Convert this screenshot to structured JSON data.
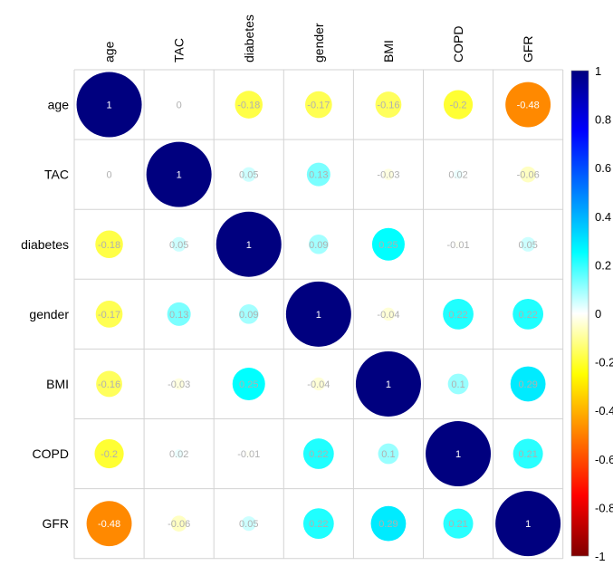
{
  "chart_data": {
    "type": "heatmap",
    "title": "",
    "variables": [
      "age",
      "TAC",
      "diabetes",
      "gender",
      "BMI",
      "COPD",
      "GFR"
    ],
    "matrix": [
      [
        1,
        0,
        -0.18,
        -0.17,
        -0.16,
        -0.2,
        -0.48
      ],
      [
        0,
        1,
        0.05,
        0.13,
        -0.03,
        0.02,
        -0.06
      ],
      [
        -0.18,
        0.05,
        1,
        0.09,
        0.25,
        -0.01,
        0.05
      ],
      [
        -0.17,
        0.13,
        0.09,
        1,
        -0.04,
        0.22,
        0.22
      ],
      [
        -0.16,
        -0.03,
        0.25,
        -0.04,
        1,
        0.1,
        0.29
      ],
      [
        -0.2,
        0.02,
        -0.01,
        0.22,
        0.1,
        1,
        0.21
      ],
      [
        -0.48,
        -0.06,
        0.05,
        0.22,
        0.29,
        0.21,
        1
      ]
    ],
    "value_labels": [
      [
        "1",
        "0",
        "-0.18",
        "-0.17",
        "-0.16",
        "-0.2",
        "-0.48"
      ],
      [
        "0",
        "1",
        "0.05",
        "0.13",
        "-0.03",
        "0.02",
        "-0.06"
      ],
      [
        "-0.18",
        "0.05",
        "1",
        "0.09",
        "0.25",
        "-0.01",
        "0.05"
      ],
      [
        "-0.17",
        "0.13",
        "0.09",
        "1",
        "-0.04",
        "0.22",
        "0.22"
      ],
      [
        "-0.16",
        "-0.03",
        "0.25",
        "-0.04",
        "1",
        "0.1",
        "0.29"
      ],
      [
        "-0.2",
        "0.02",
        "-0.01",
        "0.22",
        "0.1",
        "1",
        "0.21"
      ],
      [
        "-0.48",
        "-0.06",
        "0.05",
        "0.22",
        "0.29",
        "0.21",
        "1"
      ]
    ],
    "colorbar": {
      "range": [
        -1,
        1
      ],
      "ticks": [
        "1",
        "0.8",
        "0.6",
        "0.4",
        "0.2",
        "0",
        "-0.2",
        "-0.4",
        "-0.6",
        "-0.8",
        "-1"
      ],
      "tick_values": [
        1,
        0.8,
        0.6,
        0.4,
        0.2,
        0,
        -0.2,
        -0.4,
        -0.6,
        -0.8,
        -1
      ],
      "colors": [
        "#7f0000",
        "#ff0000",
        "#ff7f00",
        "#ffff00",
        "#ffffff",
        "#00ffff",
        "#007fff",
        "#0000ff",
        "#00007f"
      ]
    },
    "marker": "circle",
    "grid": true,
    "legend_position": "right"
  }
}
